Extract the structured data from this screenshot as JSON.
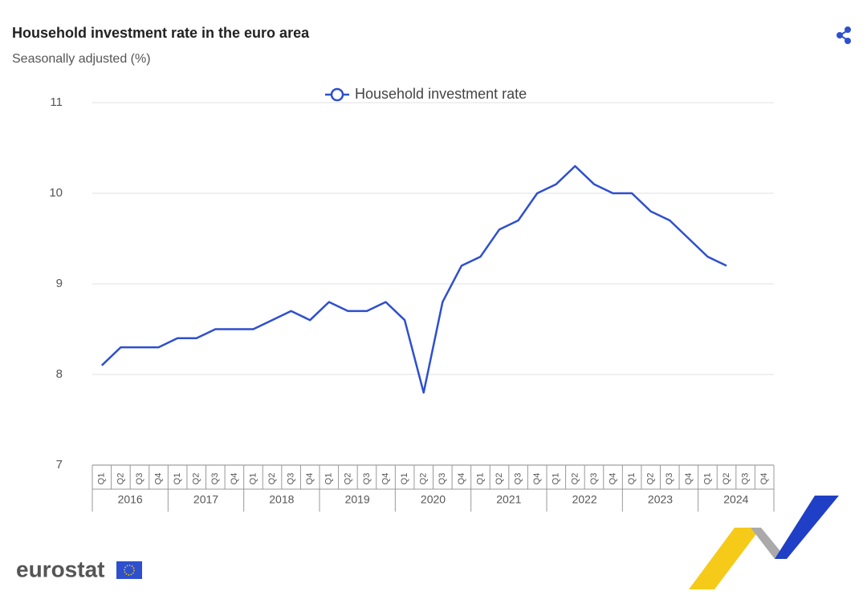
{
  "chart_data": {
    "type": "line",
    "title": "Household investment rate in the euro area",
    "subtitle": "Seasonally adjusted (%)",
    "categories": [
      "Q1",
      "Q2",
      "Q3",
      "Q4",
      "Q1",
      "Q2",
      "Q3",
      "Q4",
      "Q1",
      "Q2",
      "Q3",
      "Q4",
      "Q1",
      "Q2",
      "Q3",
      "Q4",
      "Q1",
      "Q2",
      "Q3",
      "Q4",
      "Q1",
      "Q2",
      "Q3",
      "Q4",
      "Q1",
      "Q2",
      "Q3",
      "Q4",
      "Q1",
      "Q2",
      "Q3",
      "Q4",
      "Q1",
      "Q2",
      "Q3",
      "Q4"
    ],
    "category_groups": [
      "2016",
      "2017",
      "2018",
      "2019",
      "2020",
      "2021",
      "2022",
      "2023",
      "2024"
    ],
    "series": [
      {
        "name": "Household investment rate",
        "color": "#2e4fce",
        "values": [
          8.1,
          8.3,
          8.3,
          8.3,
          8.4,
          8.4,
          8.5,
          8.5,
          8.5,
          8.6,
          8.7,
          8.6,
          8.8,
          8.7,
          8.7,
          8.8,
          8.6,
          7.8,
          8.8,
          9.2,
          9.3,
          9.6,
          9.7,
          10.0,
          10.1,
          10.3,
          10.1,
          10.0,
          10.0,
          9.8,
          9.7,
          9.5,
          9.3,
          9.2,
          null,
          null
        ]
      }
    ],
    "ylim": [
      7,
      11
    ],
    "yticks": [
      7,
      8,
      9,
      10,
      11
    ],
    "grid": true,
    "legend": "top"
  },
  "branding": "eurostat"
}
